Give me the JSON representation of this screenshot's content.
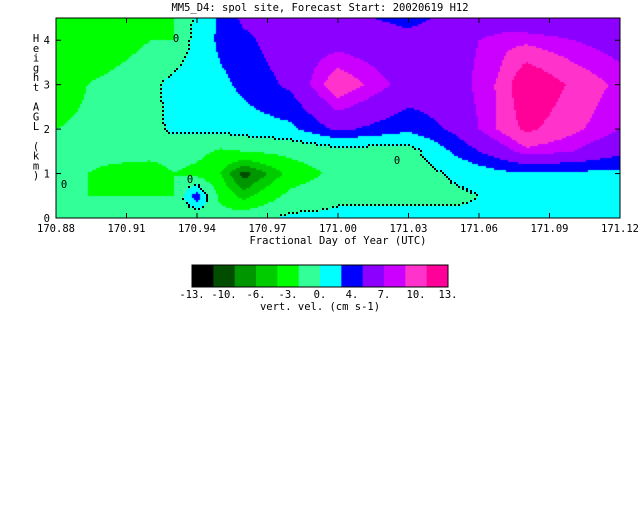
{
  "chart_data": {
    "type": "heatmap",
    "title": "MM5_D4: spol site,  Forecast Start: 20020619 H12",
    "xlabel": "Fractional Day of Year (UTC)",
    "ylabel": "Height AGL (km)",
    "xlim": [
      170.88,
      171.12
    ],
    "ylim": [
      0,
      4.5
    ],
    "x_ticks": [
      "170.88",
      "170.91",
      "170.94",
      "170.97",
      "171.00",
      "171.03",
      "171.06",
      "171.09",
      "171.12"
    ],
    "y_ticks": [
      "0",
      "1",
      "2",
      "3",
      "4"
    ],
    "zero_contour_label": "0",
    "colorbar": {
      "label": "vert. vel. (cm s-1)",
      "tick_labels": [
        "-13.",
        "-10.",
        "-6.",
        "-3.",
        "0.",
        "4.",
        "7.",
        "10.",
        "13."
      ],
      "levels": [
        -13,
        -11.5,
        -10,
        -8,
        -6,
        -4.5,
        -3,
        -1.5,
        0,
        2,
        4,
        5.5,
        7,
        8.5,
        10,
        11.5,
        13
      ],
      "colors": [
        "#000000",
        "#004d00",
        "#009600",
        "#00cc00",
        "#00ff00",
        "#33ff99",
        "#00ffff",
        "#0000ff",
        "#8b00ff",
        "#cc00ff",
        "#ff33cc",
        "#ff0099"
      ]
    },
    "x": [
      170.88,
      170.9,
      170.92,
      170.93,
      170.94,
      170.95,
      170.96,
      170.98,
      171.0,
      171.03,
      171.05,
      171.07,
      171.08,
      171.1,
      171.12
    ],
    "y": [
      0,
      0.5,
      1.0,
      1.5,
      2.0,
      3.0,
      4.0,
      4.5
    ],
    "values": [
      [
        -1.5,
        -1.5,
        -1.5,
        -1.5,
        -2,
        -1.5,
        -1,
        0.5,
        0.5,
        0.5,
        0.5,
        0.5,
        0.5,
        0.5,
        1
      ],
      [
        -3,
        -3,
        -3,
        -3,
        4,
        -4,
        -7,
        -2,
        -0.5,
        -0.5,
        -0.5,
        0.5,
        0.5,
        0.5,
        0.5
      ],
      [
        -2,
        -3.5,
        -5,
        -3,
        -4,
        -6,
        -11,
        -5,
        -2,
        -1.5,
        0.5,
        2,
        2,
        2,
        2
      ],
      [
        -2,
        -2,
        -1.5,
        -1.5,
        -2,
        -3.5,
        -3,
        -2,
        -1,
        -1,
        3,
        6,
        8,
        7,
        5
      ],
      [
        -3,
        -2.5,
        -1,
        0.5,
        0.5,
        1,
        1.5,
        2,
        5,
        3,
        5,
        9,
        11,
        9,
        7
      ],
      [
        -4,
        -2.5,
        -1,
        1,
        1.5,
        2,
        3,
        5,
        10,
        6,
        6,
        9,
        13,
        10,
        8
      ],
      [
        -4,
        -5,
        -3,
        -3,
        1,
        3,
        4,
        6,
        6,
        5,
        6,
        8,
        8,
        7,
        6
      ],
      [
        -4,
        -6,
        -4,
        -3,
        0.5,
        3,
        5,
        5,
        5,
        4,
        5,
        5,
        5,
        5,
        5
      ]
    ]
  }
}
